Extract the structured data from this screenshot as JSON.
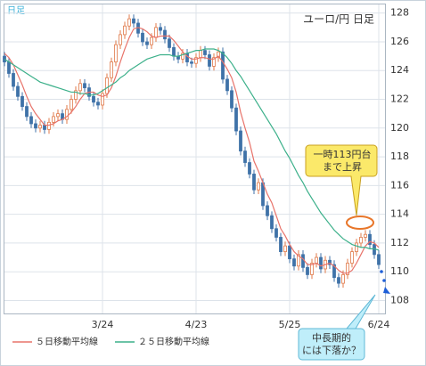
{
  "chart_data": {
    "type": "candlestick",
    "title": "ユーロ/円 日足",
    "subtitle": "日足",
    "categories": [
      null,
      null,
      null,
      null,
      null,
      null,
      null,
      null,
      null,
      null,
      null,
      null,
      null,
      null,
      null,
      null,
      null,
      null,
      null,
      null,
      null,
      null,
      "3/24",
      null,
      null,
      null,
      null,
      null,
      null,
      null,
      null,
      null,
      null,
      null,
      null,
      null,
      null,
      null,
      null,
      null,
      null,
      null,
      null,
      "4/23",
      null,
      null,
      null,
      null,
      null,
      null,
      null,
      null,
      null,
      null,
      null,
      null,
      null,
      null,
      null,
      null,
      null,
      null,
      null,
      null,
      "5/25",
      null,
      null,
      null,
      null,
      null,
      null,
      null,
      null,
      null,
      null,
      null,
      null,
      null,
      null,
      null,
      null,
      null,
      null,
      null,
      "6/24"
    ],
    "open": [
      125.0,
      124.6,
      123.8,
      122.9,
      122.2,
      121.5,
      120.8,
      120.3,
      120.0,
      120.2,
      119.9,
      120.4,
      120.8,
      121.0,
      120.6,
      121.3,
      122.0,
      122.6,
      123.1,
      122.8,
      122.2,
      121.8,
      121.6,
      122.4,
      123.5,
      124.6,
      125.8,
      126.5,
      127.1,
      127.6,
      127.3,
      126.6,
      126.0,
      125.8,
      126.3,
      127.0,
      126.8,
      126.2,
      125.6,
      125.0,
      124.8,
      125.2,
      124.6,
      124.5,
      124.9,
      125.4,
      125.1,
      124.3,
      124.9,
      125.3,
      123.4,
      122.6,
      121.4,
      119.8,
      118.4,
      117.6,
      116.8,
      115.7,
      116.2,
      114.6,
      113.9,
      113.0,
      112.4,
      111.4,
      111.8,
      110.9,
      110.4,
      111.2,
      110.3,
      109.8,
      110.6,
      111.0,
      110.2,
      110.8,
      110.5,
      109.6,
      109.2,
      109.8,
      110.6,
      111.4,
      112.0,
      112.4,
      112.6,
      111.9,
      111.2
    ],
    "high": [
      125.3,
      124.9,
      124.1,
      123.2,
      122.5,
      121.8,
      121.1,
      120.6,
      120.5,
      120.5,
      120.7,
      121.1,
      121.3,
      121.3,
      121.6,
      122.3,
      122.9,
      123.4,
      123.4,
      123.1,
      122.5,
      122.1,
      122.7,
      123.8,
      124.9,
      126.1,
      126.8,
      127.4,
      127.9,
      127.9,
      127.6,
      126.9,
      126.3,
      126.6,
      127.3,
      127.3,
      127.1,
      126.5,
      125.9,
      125.3,
      125.5,
      125.5,
      124.9,
      125.2,
      125.7,
      125.7,
      125.4,
      125.2,
      125.6,
      125.6,
      123.7,
      122.9,
      121.7,
      120.1,
      118.7,
      117.9,
      117.1,
      116.5,
      116.5,
      114.9,
      114.2,
      113.3,
      112.7,
      112.1,
      112.1,
      111.2,
      111.5,
      111.5,
      110.6,
      110.9,
      111.3,
      111.3,
      111.1,
      111.1,
      110.8,
      109.9,
      110.1,
      110.9,
      111.7,
      112.3,
      112.7,
      112.9,
      112.9,
      112.2,
      111.5
    ],
    "low": [
      124.3,
      123.5,
      122.6,
      121.9,
      121.2,
      120.5,
      120.0,
      119.7,
      119.7,
      119.6,
      119.6,
      120.1,
      120.5,
      120.3,
      120.3,
      121.0,
      121.7,
      122.3,
      122.5,
      121.9,
      121.5,
      121.3,
      121.3,
      122.1,
      123.2,
      124.3,
      125.5,
      126.2,
      126.8,
      127.0,
      126.3,
      125.7,
      125.5,
      125.5,
      126.0,
      126.5,
      125.9,
      125.3,
      124.7,
      124.5,
      124.5,
      124.3,
      124.2,
      124.2,
      124.6,
      124.8,
      124.0,
      124.0,
      124.6,
      123.1,
      122.3,
      121.1,
      119.5,
      118.1,
      117.3,
      116.5,
      115.4,
      115.4,
      114.3,
      113.6,
      112.7,
      112.1,
      111.1,
      111.1,
      110.6,
      110.1,
      110.1,
      110.0,
      109.5,
      109.5,
      110.3,
      109.9,
      109.9,
      110.2,
      109.3,
      108.9,
      108.9,
      109.5,
      110.3,
      111.1,
      111.7,
      112.1,
      111.6,
      110.9,
      110.2
    ],
    "close": [
      124.6,
      123.8,
      122.9,
      122.2,
      121.5,
      120.8,
      120.3,
      120.0,
      120.2,
      119.9,
      120.4,
      120.8,
      121.0,
      120.6,
      121.3,
      122.0,
      122.6,
      123.1,
      122.8,
      122.2,
      121.8,
      121.6,
      122.4,
      123.5,
      124.6,
      125.8,
      126.5,
      127.1,
      127.6,
      127.3,
      126.6,
      126.0,
      125.8,
      126.3,
      127.0,
      126.8,
      126.2,
      125.6,
      125.0,
      124.8,
      125.2,
      124.6,
      124.5,
      124.9,
      125.4,
      125.1,
      124.3,
      124.9,
      125.3,
      123.4,
      122.6,
      121.4,
      119.8,
      118.4,
      117.6,
      116.8,
      115.7,
      116.2,
      114.6,
      113.9,
      113.0,
      112.4,
      111.4,
      111.8,
      110.9,
      110.4,
      111.2,
      110.3,
      109.8,
      110.6,
      111.0,
      110.2,
      110.8,
      110.5,
      109.6,
      109.2,
      109.8,
      110.6,
      111.4,
      112.0,
      112.4,
      112.6,
      111.9,
      111.2,
      110.5
    ],
    "up_color": "#e07a4a",
    "down_color": "#3f72a8",
    "series": [
      {
        "name": "５日移動平均線",
        "color": "#e8736a",
        "values": [
          125.2,
          124.9,
          124.4,
          123.7,
          123.0,
          122.2,
          121.5,
          121.0,
          120.6,
          120.2,
          120.2,
          120.3,
          120.5,
          120.6,
          120.8,
          121.1,
          121.5,
          122.0,
          122.4,
          122.5,
          122.5,
          122.3,
          122.2,
          122.3,
          122.8,
          123.6,
          124.6,
          125.5,
          126.3,
          126.9,
          127.0,
          126.9,
          126.7,
          126.4,
          126.3,
          126.4,
          126.4,
          126.4,
          126.1,
          125.7,
          125.3,
          125.0,
          124.8,
          124.8,
          124.9,
          124.9,
          124.8,
          124.8,
          125.0,
          124.6,
          124.1,
          123.5,
          122.5,
          121.1,
          120.0,
          119.0,
          117.7,
          117.0,
          116.2,
          115.4,
          114.8,
          113.9,
          113.0,
          112.5,
          111.9,
          111.4,
          111.1,
          110.9,
          110.5,
          110.5,
          110.6,
          110.4,
          110.5,
          110.6,
          110.4,
          110.1,
          109.9,
          109.9,
          110.1,
          110.6,
          111.2,
          111.8,
          112.1,
          112.0,
          111.7
        ]
      },
      {
        "name": "２５日移動平均線",
        "color": "#3cb08a",
        "values": [
          124.8,
          124.6,
          124.4,
          124.2,
          124.0,
          123.8,
          123.6,
          123.4,
          123.2,
          123.1,
          123.0,
          122.9,
          122.8,
          122.7,
          122.6,
          122.5,
          122.5,
          122.4,
          122.4,
          122.3,
          122.3,
          122.4,
          122.6,
          122.8,
          123.0,
          123.2,
          123.5,
          123.7,
          124.0,
          124.2,
          124.4,
          124.6,
          124.8,
          124.9,
          125.0,
          125.1,
          125.1,
          125.1,
          125.0,
          125.0,
          125.1,
          125.2,
          125.3,
          125.4,
          125.4,
          125.5,
          125.5,
          125.5,
          125.4,
          125.2,
          124.9,
          124.5,
          124.0,
          123.6,
          123.1,
          122.6,
          122.1,
          121.6,
          121.1,
          120.6,
          120.1,
          119.6,
          119.0,
          118.4,
          117.9,
          117.3,
          116.7,
          116.2,
          115.6,
          115.1,
          114.6,
          114.1,
          113.7,
          113.3,
          112.9,
          112.6,
          112.3,
          112.1,
          111.9,
          111.8,
          111.7,
          111.7,
          111.6,
          111.6,
          111.5
        ]
      }
    ],
    "ylim": [
      107.1,
      128.6
    ],
    "yticks": [
      108,
      110,
      112,
      114,
      116,
      118,
      120,
      122,
      124,
      126,
      128
    ],
    "grid": true,
    "annotations": [
      {
        "lines": [
          "一時113円台",
          "まで上昇"
        ]
      },
      {
        "lines": [
          "中長期的",
          "には下落か？"
        ]
      }
    ]
  }
}
